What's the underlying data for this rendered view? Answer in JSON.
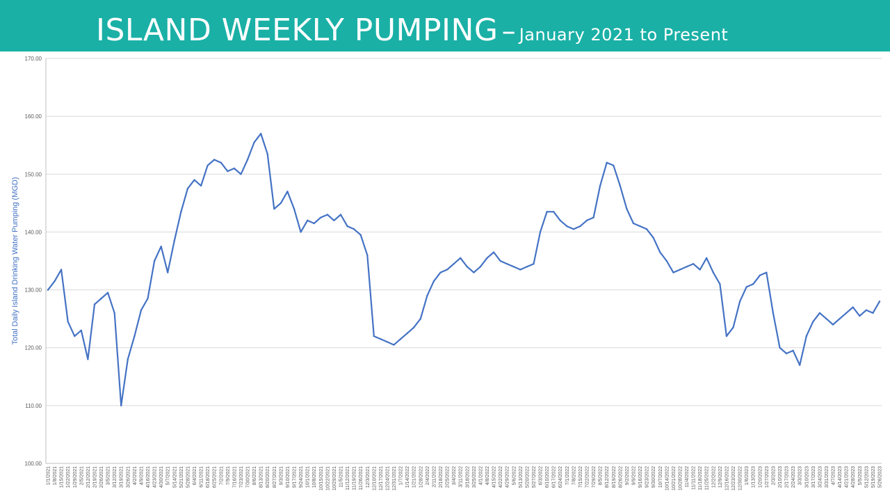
{
  "header": {
    "title": "ISLAND WEEKLY PUMPING",
    "separator": "–",
    "subtitle": "January 2021 to Present"
  },
  "colors": {
    "banner": "#1ab0a6",
    "series": "#4472c4",
    "grid": "#d9d9d9"
  },
  "chart_data": {
    "type": "line",
    "title": "ISLAND WEEKLY PUMPING – January 2021 to Present",
    "xlabel": "",
    "ylabel": "Total Daily Island Drinking Water Pumping (MGD)",
    "ylim": [
      100,
      170
    ],
    "yticks": [
      "100.00",
      "110.00",
      "120.00",
      "130.00",
      "140.00",
      "150.00",
      "160.00",
      "170.00"
    ],
    "grid": true,
    "legend": "none",
    "x": [
      "1/1/2021",
      "1/8/2021",
      "1/15/2021",
      "1/22/2021",
      "1/29/2021",
      "2/5/2021",
      "2/12/2021",
      "2/19/2021",
      "2/26/2021",
      "3/5/2021",
      "3/12/2021",
      "3/19/2021",
      "3/26/2021",
      "4/2/2021",
      "4/9/2021",
      "4/16/2021",
      "4/23/2021",
      "4/30/2021",
      "5/7/2021",
      "5/14/2021",
      "5/21/2021",
      "5/28/2021",
      "6/4/2021",
      "6/11/2021",
      "6/18/2021",
      "6/25/2021",
      "7/2/2021",
      "7/9/2021",
      "7/16/2021",
      "7/23/2021",
      "7/30/2021",
      "8/6/2021",
      "8/13/2021",
      "8/20/2021",
      "8/27/2021",
      "9/3/2021",
      "9/10/2021",
      "9/17/2021",
      "9/24/2021",
      "10/1/2021",
      "10/8/2021",
      "10/15/2021",
      "10/22/2021",
      "10/29/2021",
      "11/5/2021",
      "11/12/2021",
      "11/19/2021",
      "11/26/2021",
      "12/3/2021",
      "12/10/2021",
      "12/17/2021",
      "12/24/2021",
      "12/31/2021",
      "1/7/2022",
      "1/14/2022",
      "1/21/2022",
      "1/28/2022",
      "2/4/2022",
      "2/11/2022",
      "2/18/2022",
      "2/25/2022",
      "3/4/2022",
      "3/11/2022",
      "3/18/2022",
      "3/25/2022",
      "4/1/2022",
      "4/8/2022",
      "4/15/2022",
      "4/22/2022",
      "4/29/2022",
      "5/6/2022",
      "5/13/2022",
      "5/20/2022",
      "5/27/2022",
      "6/3/2022",
      "6/10/2022",
      "6/17/2022",
      "6/24/2022",
      "7/1/2022",
      "7/8/2022",
      "7/15/2022",
      "7/22/2022",
      "7/29/2022",
      "8/5/2022",
      "8/12/2022",
      "8/19/2022",
      "8/26/2022",
      "9/2/2022",
      "9/9/2022",
      "9/16/2022",
      "9/23/2022",
      "9/30/2022",
      "10/7/2022",
      "10/14/2022",
      "10/21/2022",
      "10/28/2022",
      "11/4/2022",
      "11/11/2022",
      "11/18/2022",
      "11/25/2022",
      "12/2/2022",
      "12/9/2022",
      "12/16/2022",
      "12/23/2022",
      "12/30/2022",
      "1/6/2023",
      "1/13/2023",
      "1/20/2023",
      "1/27/2023",
      "2/3/2023",
      "2/10/2023",
      "2/17/2023",
      "2/24/2023",
      "3/3/2023",
      "3/10/2023",
      "3/17/2023",
      "3/24/2023",
      "3/31/2023",
      "4/7/2023",
      "4/14/2023",
      "4/21/2023",
      "4/28/2023",
      "5/5/2023",
      "5/12/2023",
      "5/19/2023",
      "5/26/2023"
    ],
    "series": [
      {
        "values": [
          130.0,
          131.5,
          133.5,
          124.5,
          122.0,
          123.0,
          118.0,
          127.5,
          128.5,
          129.5,
          126.0,
          110.0,
          118.0,
          122.0,
          126.5,
          128.5,
          135.0,
          137.5,
          133.0,
          138.5,
          143.5,
          147.5,
          149.0,
          148.0,
          151.5,
          152.5,
          152.0,
          150.5,
          151.0,
          150.0,
          152.5,
          155.5,
          157.0,
          153.5,
          144.0,
          145.0,
          147.0,
          144.0,
          140.0,
          142.0,
          141.5,
          142.5,
          143.0,
          142.0,
          143.0,
          141.0,
          140.5,
          139.5,
          136.0,
          122.0,
          121.5,
          121.0,
          120.5,
          121.5,
          122.5,
          123.5,
          125.0,
          129.0,
          131.5,
          133.0,
          133.5,
          134.5,
          135.5,
          134.0,
          133.0,
          134.0,
          135.5,
          136.5,
          135.0,
          134.5,
          134.0,
          133.5,
          134.0,
          134.5,
          140.0,
          143.5,
          143.5,
          142.0,
          141.0,
          140.5,
          141.0,
          142.0,
          142.5,
          148.0,
          152.0,
          151.5,
          148.0,
          144.0,
          141.5,
          141.0,
          140.5,
          139.0,
          136.5,
          135.0,
          133.0,
          133.5,
          134.0,
          134.5,
          133.5,
          135.5,
          133.0,
          131.0,
          122.0,
          123.5,
          128.0,
          130.5,
          131.0,
          132.5,
          133.0,
          126.0,
          120.0,
          119.0,
          119.5,
          117.0,
          122.0,
          124.5,
          126.0,
          125.0,
          124.0,
          125.0,
          126.0,
          127.0,
          125.5,
          126.5,
          126.0,
          128.0
        ]
      }
    ]
  }
}
